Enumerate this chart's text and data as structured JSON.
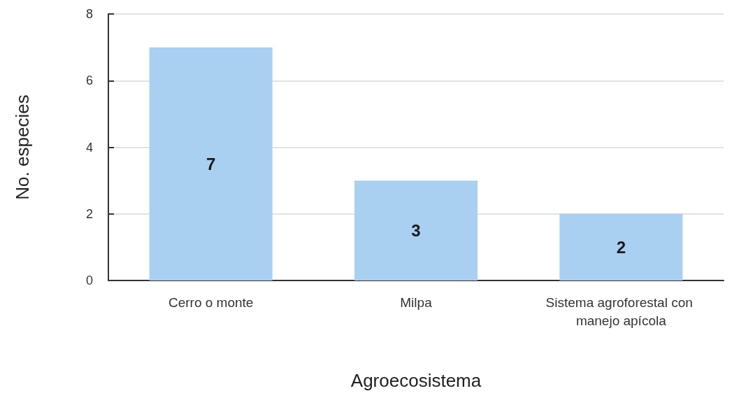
{
  "chart_data": {
    "type": "bar",
    "xlabel": "Agroecosistema",
    "ylabel": "No. especies",
    "categories": [
      "Cerro o monte",
      "Milpa",
      "Sistema agroforestal con manejo apícola"
    ],
    "values": [
      7,
      3,
      2
    ],
    "color": "#a9cff1",
    "ylim": [
      0,
      8
    ],
    "yticks": [
      0,
      2,
      4,
      6,
      8
    ],
    "grid": "y",
    "data_labels": true
  }
}
